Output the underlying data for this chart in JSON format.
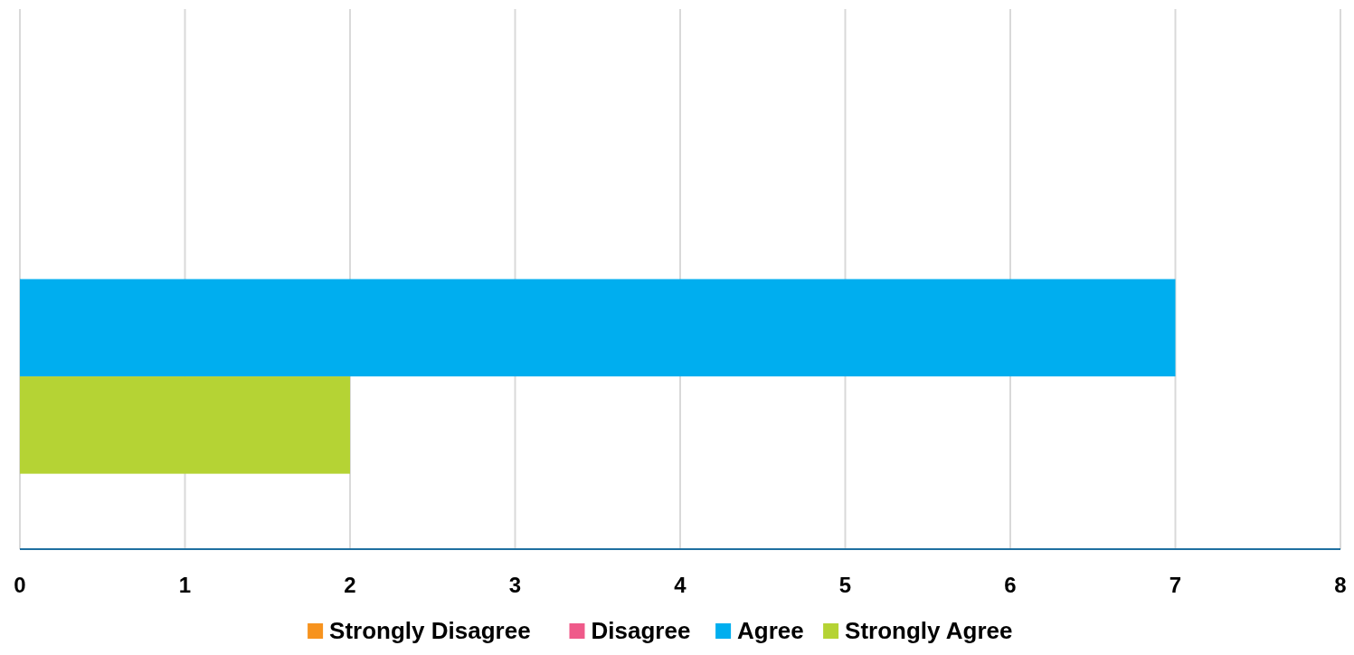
{
  "chart_data": {
    "type": "bar",
    "orientation": "horizontal",
    "categories": [
      null
    ],
    "series": [
      {
        "name": "Strongly Disagree",
        "color": "#f7931e",
        "values": [
          0
        ]
      },
      {
        "name": "Disagree",
        "color": "#ef5a8a",
        "values": [
          0
        ]
      },
      {
        "name": "Agree",
        "color": "#00aeef",
        "values": [
          7
        ]
      },
      {
        "name": "Strongly Agree",
        "color": "#b5d334",
        "values": [
          2
        ]
      }
    ],
    "xlim": [
      0,
      8
    ],
    "xticks": [
      0,
      1,
      2,
      3,
      4,
      5,
      6,
      7,
      8
    ],
    "grid": "x",
    "legend": "bottom"
  }
}
